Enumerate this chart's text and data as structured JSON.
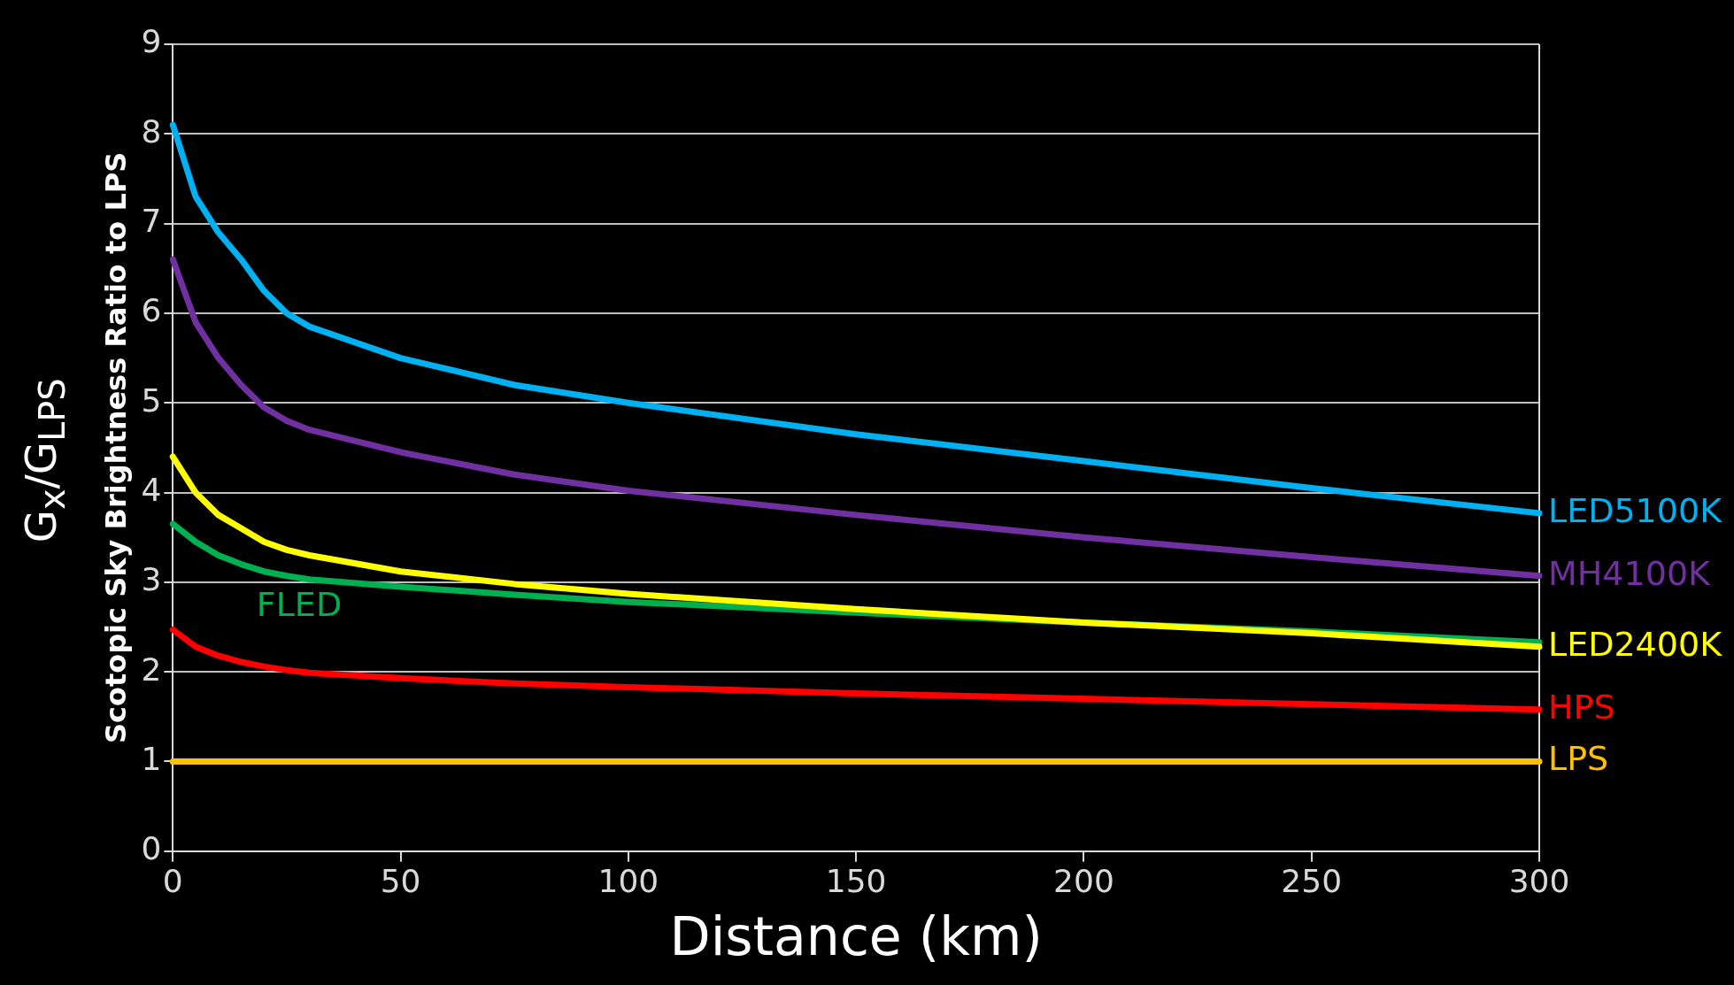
{
  "chart_data": {
    "type": "line",
    "xlabel": "Distance (km)",
    "ylabel": "Scotopic Sky Brightness Ratio to LPS",
    "annotations": [
      "G$_{x}$/G$_{LPS}$"
    ],
    "x": [
      0,
      5,
      10,
      15,
      20,
      25,
      30,
      50,
      75,
      100,
      150,
      200,
      250,
      300
    ],
    "series": [
      {
        "name": "LED5100K",
        "color": "#00b0f0",
        "values": [
          8.1,
          7.3,
          6.9,
          6.6,
          6.25,
          6.0,
          5.85,
          5.5,
          5.2,
          5.0,
          4.65,
          4.35,
          4.05,
          3.77
        ]
      },
      {
        "name": "MH4100K",
        "color": "#7030a0",
        "values": [
          6.6,
          5.9,
          5.5,
          5.2,
          4.95,
          4.8,
          4.7,
          4.45,
          4.2,
          4.02,
          3.75,
          3.5,
          3.28,
          3.07
        ]
      },
      {
        "name": "LED2400K",
        "color": "#ffff00",
        "values": [
          4.4,
          4.0,
          3.75,
          3.6,
          3.45,
          3.36,
          3.3,
          3.12,
          2.98,
          2.87,
          2.7,
          2.55,
          2.43,
          2.28
        ]
      },
      {
        "name": "FLED",
        "color": "#00b050",
        "values": [
          3.65,
          3.45,
          3.3,
          3.2,
          3.12,
          3.07,
          3.03,
          2.95,
          2.86,
          2.78,
          2.66,
          2.55,
          2.45,
          2.33
        ]
      },
      {
        "name": "HPS",
        "color": "#ff0000",
        "values": [
          2.47,
          2.28,
          2.18,
          2.11,
          2.06,
          2.02,
          1.99,
          1.93,
          1.87,
          1.83,
          1.76,
          1.7,
          1.64,
          1.58
        ]
      },
      {
        "name": "LPS",
        "color": "#ffc000",
        "values": [
          1,
          1,
          1,
          1,
          1,
          1,
          1,
          1,
          1,
          1,
          1,
          1,
          1,
          1
        ]
      }
    ],
    "xlim": [
      0,
      300
    ],
    "xticks": [
      0,
      50,
      100,
      150,
      200,
      250,
      300
    ],
    "ylim": [
      0,
      9
    ],
    "yticks": [
      0,
      1,
      2,
      3,
      4,
      5,
      6,
      7,
      8,
      9
    ],
    "grid": "y",
    "legend": false,
    "marker": "none",
    "line_style": "solid"
  }
}
